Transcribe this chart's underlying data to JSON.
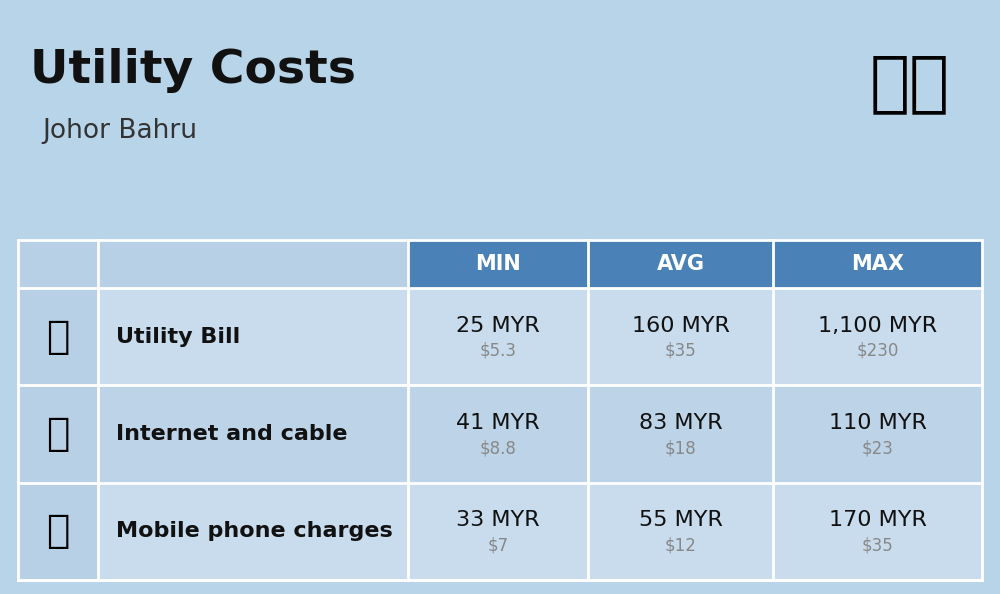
{
  "title": "Utility Costs",
  "subtitle": "Johor Bahru",
  "background_color": "#b8d4e8",
  "header_bg_color": "#4a82b8",
  "header_text_color": "#ffffff",
  "row_bg_color_1": "#c8dced",
  "row_bg_color_2": "#bdd3e8",
  "icon_col_bg": "#b8d0e5",
  "divider_color": "#ffffff",
  "rows": [
    {
      "label": "Utility Bill",
      "min_myr": "25 MYR",
      "min_usd": "$5.3",
      "avg_myr": "160 MYR",
      "avg_usd": "$35",
      "max_myr": "1,100 MYR",
      "max_usd": "$230",
      "icon": "🔌"
    },
    {
      "label": "Internet and cable",
      "min_myr": "41 MYR",
      "min_usd": "$8.8",
      "avg_myr": "83 MYR",
      "avg_usd": "$18",
      "max_myr": "110 MYR",
      "max_usd": "$23",
      "icon": "📡"
    },
    {
      "label": "Mobile phone charges",
      "min_myr": "33 MYR",
      "min_usd": "$7",
      "avg_myr": "55 MYR",
      "avg_usd": "$12",
      "max_myr": "170 MYR",
      "max_usd": "$35",
      "icon": "📱"
    }
  ],
  "myr_fontsize": 16,
  "usd_fontsize": 12,
  "label_fontsize": 16,
  "header_fontsize": 15,
  "title_fontsize": 34,
  "subtitle_fontsize": 19,
  "usd_color": "#888888",
  "label_color": "#111111",
  "myr_color": "#111111",
  "title_color": "#111111",
  "flag_emoji": "🇲🇾",
  "flag_fontsize": 48,
  "icon_fontsize": 28
}
